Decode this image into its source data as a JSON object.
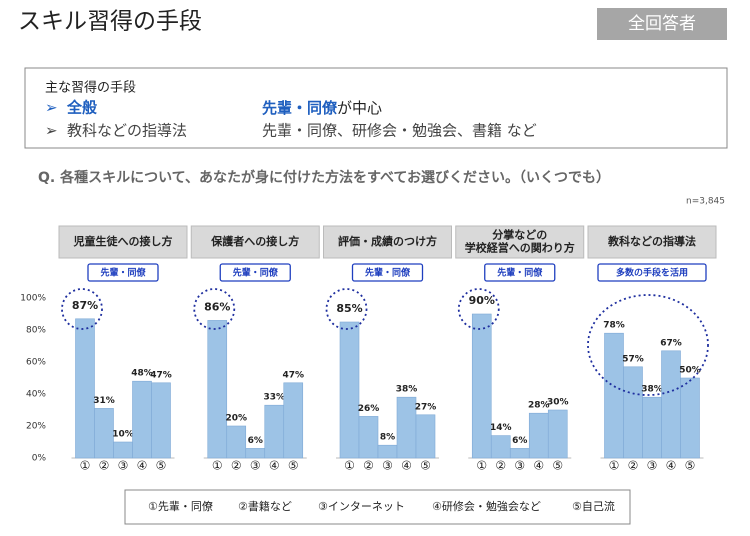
{
  "header": {
    "title": "スキル習得の手段",
    "badge": "全回答者"
  },
  "summary": {
    "heading": "主な習得の手段",
    "rows": [
      {
        "label": "全般",
        "highlight": "先輩・同僚",
        "rest": "が中心"
      },
      {
        "label": "教科などの指導法",
        "text": "先輩・同僚、研修会・勉強会、書籍 など"
      }
    ]
  },
  "question": "Q. 各種スキルについて、あなたが身に付けた方法をすべてお選びください。（いくつでも）",
  "note": "n=3,845",
  "categories": [
    "①",
    "②",
    "③",
    "④",
    "⑤"
  ],
  "legend": [
    "①先輩・同僚",
    "②書籍など",
    "③インターネット",
    "④研修会・勉強会など",
    "⑤自己流"
  ],
  "chart_data": [
    {
      "type": "bar",
      "title": [
        "児童生徒への接し方"
      ],
      "tag": "先輩・同僚",
      "color": "#9dc3e6",
      "values": [
        87,
        31,
        10,
        48,
        47
      ],
      "value_labels": [
        "87%",
        "31%",
        "10%",
        "48%",
        "47%"
      ],
      "ylim": [
        0,
        100
      ],
      "yticks": [
        {
          "value": 0,
          "label": "0%"
        },
        {
          "value": 20,
          "label": "20%"
        },
        {
          "value": 40,
          "label": "40%"
        },
        {
          "value": 60,
          "label": "60%"
        },
        {
          "value": 80,
          "label": "80%"
        },
        {
          "value": 100,
          "label": "100%"
        }
      ]
    },
    {
      "type": "bar",
      "title": [
        "保護者への接し方"
      ],
      "tag": "先輩・同僚",
      "color": "#9dc3e6",
      "values": [
        86,
        20,
        6,
        33,
        47
      ],
      "value_labels": [
        "86%",
        "20%",
        "6%",
        "33%",
        "47%"
      ],
      "ylim": [
        0,
        100
      ]
    },
    {
      "type": "bar",
      "title": [
        "評価・成績のつけ方"
      ],
      "tag": "先輩・同僚",
      "color": "#9dc3e6",
      "values": [
        85,
        26,
        8,
        38,
        27
      ],
      "value_labels": [
        "85%",
        "26%",
        "8%",
        "38%",
        "27%"
      ],
      "ylim": [
        0,
        100
      ]
    },
    {
      "type": "bar",
      "title": [
        "分掌などの",
        "学校経営への関わり方"
      ],
      "tag": "先輩・同僚",
      "color": "#9dc3e6",
      "values": [
        90,
        14,
        6,
        28,
        30
      ],
      "value_labels": [
        "90%",
        "14%",
        "6%",
        "28%",
        "30%"
      ],
      "ylim": [
        0,
        100
      ]
    },
    {
      "type": "bar",
      "title": [
        "教科などの指導法"
      ],
      "tag": "多数の手段を活用",
      "color": "#9dc3e6",
      "values": [
        78,
        57,
        38,
        67,
        50
      ],
      "value_labels": [
        "78%",
        "57%",
        "38%",
        "67%",
        "50%"
      ],
      "ylim": [
        0,
        100
      ]
    }
  ]
}
